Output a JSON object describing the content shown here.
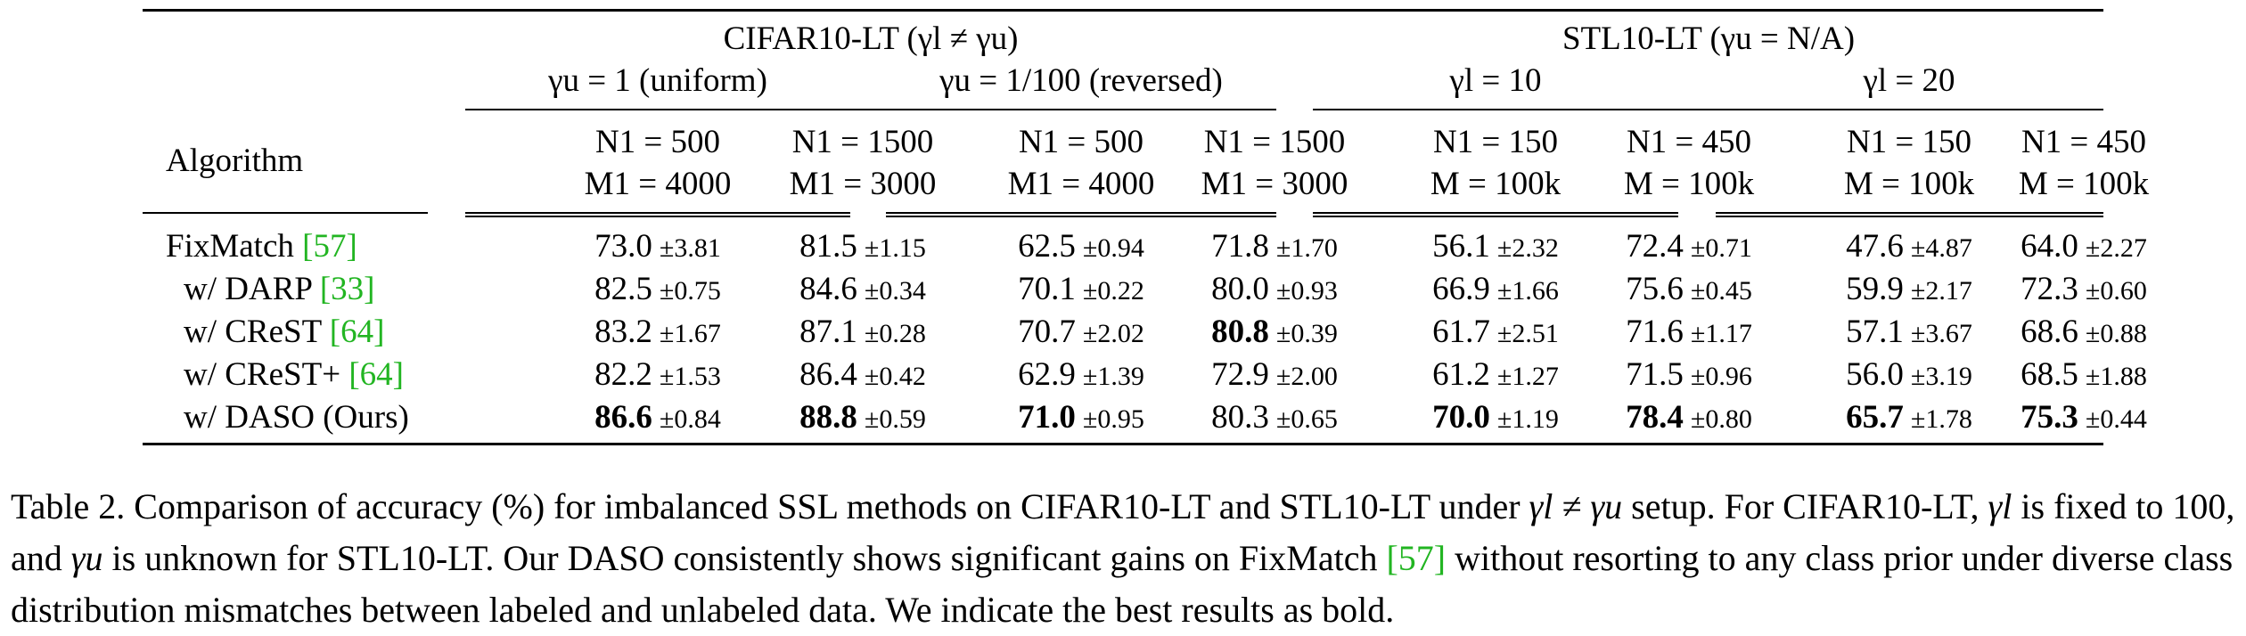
{
  "table": {
    "group_headers": [
      {
        "label": "CIFAR10-LT (γl ≠ γu)",
        "sub": [
          {
            "label": "γu = 1 (uniform)"
          },
          {
            "label": "γu = 1/100 (reversed)"
          }
        ]
      },
      {
        "label": "STL10-LT (γu = N/A)",
        "sub": [
          {
            "label": "γl = 10"
          },
          {
            "label": "γl = 20"
          }
        ]
      }
    ],
    "algorithm_label": "Algorithm",
    "columns": [
      {
        "n": "N1 = 500",
        "m": "M1 = 4000"
      },
      {
        "n": "N1 = 1500",
        "m": "M1 = 3000"
      },
      {
        "n": "N1 = 500",
        "m": "M1 = 4000"
      },
      {
        "n": "N1 = 1500",
        "m": "M1 = 3000"
      },
      {
        "n": "N1 = 150",
        "m": "M = 100k"
      },
      {
        "n": "N1 = 450",
        "m": "M = 100k"
      },
      {
        "n": "N1 = 150",
        "m": "M = 100k"
      },
      {
        "n": "N1 = 450",
        "m": "M = 100k"
      }
    ],
    "rows": [
      {
        "name": "FixMatch",
        "cite": "[57]",
        "cells": [
          {
            "v": "73.0",
            "s": "±3.81"
          },
          {
            "v": "81.5",
            "s": "±1.15"
          },
          {
            "v": "62.5",
            "s": "±0.94"
          },
          {
            "v": "71.8",
            "s": "±1.70"
          },
          {
            "v": "56.1",
            "s": "±2.32"
          },
          {
            "v": "72.4",
            "s": "±0.71"
          },
          {
            "v": "47.6",
            "s": "±4.87"
          },
          {
            "v": "64.0",
            "s": "±2.27"
          }
        ]
      },
      {
        "name": "w/ DARP",
        "cite": "[33]",
        "cells": [
          {
            "v": "82.5",
            "s": "±0.75"
          },
          {
            "v": "84.6",
            "s": "±0.34"
          },
          {
            "v": "70.1",
            "s": "±0.22"
          },
          {
            "v": "80.0",
            "s": "±0.93"
          },
          {
            "v": "66.9",
            "s": "±1.66"
          },
          {
            "v": "75.6",
            "s": "±0.45"
          },
          {
            "v": "59.9",
            "s": "±2.17"
          },
          {
            "v": "72.3",
            "s": "±0.60"
          }
        ]
      },
      {
        "name": "w/ CReST",
        "cite": "[64]",
        "cells": [
          {
            "v": "83.2",
            "s": "±1.67"
          },
          {
            "v": "87.1",
            "s": "±0.28"
          },
          {
            "v": "70.7",
            "s": "±2.02"
          },
          {
            "v": "80.8",
            "s": "±0.39",
            "b": true
          },
          {
            "v": "61.7",
            "s": "±2.51"
          },
          {
            "v": "71.6",
            "s": "±1.17"
          },
          {
            "v": "57.1",
            "s": "±3.67"
          },
          {
            "v": "68.6",
            "s": "±0.88"
          }
        ]
      },
      {
        "name": "w/ CReST+",
        "cite": "[64]",
        "cells": [
          {
            "v": "82.2",
            "s": "±1.53"
          },
          {
            "v": "86.4",
            "s": "±0.42"
          },
          {
            "v": "62.9",
            "s": "±1.39"
          },
          {
            "v": "72.9",
            "s": "±2.00"
          },
          {
            "v": "61.2",
            "s": "±1.27"
          },
          {
            "v": "71.5",
            "s": "±0.96"
          },
          {
            "v": "56.0",
            "s": "±3.19"
          },
          {
            "v": "68.5",
            "s": "±1.88"
          }
        ]
      },
      {
        "name": "w/ DASO (Ours)",
        "cite": "",
        "cells": [
          {
            "v": "86.6",
            "s": "±0.84",
            "b": true
          },
          {
            "v": "88.8",
            "s": "±0.59",
            "b": true
          },
          {
            "v": "71.0",
            "s": "±0.95",
            "b": true
          },
          {
            "v": "80.3",
            "s": "±0.65"
          },
          {
            "v": "70.0",
            "s": "±1.19",
            "b": true
          },
          {
            "v": "78.4",
            "s": "±0.80",
            "b": true
          },
          {
            "v": "65.7",
            "s": "±1.78",
            "b": true
          },
          {
            "v": "75.3",
            "s": "±0.44",
            "b": true
          }
        ]
      }
    ]
  },
  "caption": {
    "p1": "Table 2. Comparison of accuracy (%) for imbalanced SSL methods on CIFAR10-LT and STL10-LT under ",
    "p1_math": "γl ≠ γu",
    "p2": " setup. For CIFAR10-LT, ",
    "p2_math": "γl",
    "p3": " is fixed to 100, and ",
    "p3_math": "γu",
    "p4": " is unknown for STL10-LT. Our DASO consistently shows significant gains on FixMatch ",
    "p4_cite": "[57]",
    "p5": " without resorting to any class prior under diverse class distribution mismatches between labeled and unlabeled data. We indicate the best results as bold."
  }
}
